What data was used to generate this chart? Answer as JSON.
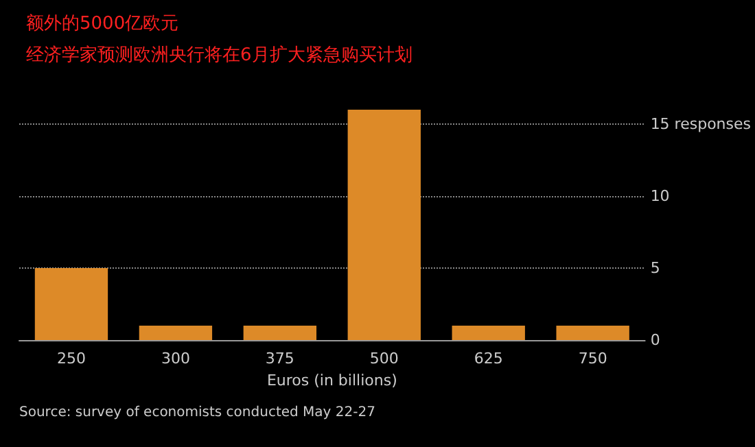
{
  "chart_data": {
    "type": "bar",
    "title": "额外的5000亿欧元",
    "subtitle": "经济学家预测欧洲央行将在6月扩大紧急购买计划",
    "xlabel": "Euros (in billions)",
    "categories": [
      "250",
      "300",
      "375",
      "500",
      "625",
      "750"
    ],
    "values": [
      5,
      1,
      1,
      16,
      1,
      1
    ],
    "color": "#dd8a28",
    "ylim": [
      0,
      16
    ],
    "yticks": [
      0,
      5,
      10,
      {
        "value": 15,
        "label": "15 responses"
      }
    ],
    "grid": "y",
    "annotations": [
      "Source: survey of economists conducted May 22-27"
    ]
  }
}
